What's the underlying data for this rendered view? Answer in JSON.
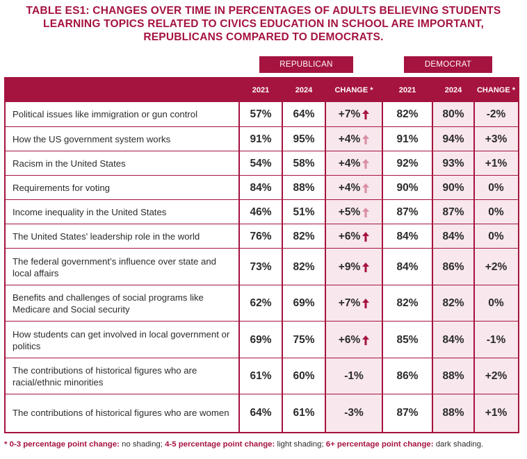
{
  "title": {
    "line1": "TABLE ES1: CHANGES OVER TIME IN PERCENTAGES OF ADULTS BELIEVING STUDENTS",
    "line2": "LEARNING TOPICS RELATED TO CIVICS EDUCATION IN SCHOOL ARE IMPORTANT,",
    "line3": "REPUBLICANS COMPARED TO DEMOCRATS."
  },
  "groups": {
    "republican": "REPUBLICAN",
    "democrat": "DEMOCRAT"
  },
  "columns": {
    "rep_2021": "2021",
    "rep_2024": "2024",
    "rep_change": "CHANGE *",
    "dem_2021": "2021",
    "dem_2024": "2024",
    "dem_change": "CHANGE *"
  },
  "colors": {
    "accent": "#a5133f",
    "light_arrow": "#d98ea4",
    "dark_arrow": "#a5133f",
    "shade": "#f8e7ec"
  },
  "rows": [
    {
      "topic": "Political issues like immigration or gun control",
      "r21": "57%",
      "r24": "64%",
      "rchg": "+7%",
      "rarrow": "dark",
      "d21": "82%",
      "d24": "80%",
      "dchg": "-2%"
    },
    {
      "topic": "How the US government system works",
      "r21": "91%",
      "r24": "95%",
      "rchg": "+4%",
      "rarrow": "light",
      "d21": "91%",
      "d24": "94%",
      "dchg": "+3%"
    },
    {
      "topic": "Racism in the United States",
      "r21": "54%",
      "r24": "58%",
      "rchg": "+4%",
      "rarrow": "light",
      "d21": "92%",
      "d24": "93%",
      "dchg": "+1%"
    },
    {
      "topic": "Requirements for voting",
      "r21": "84%",
      "r24": "88%",
      "rchg": "+4%",
      "rarrow": "light",
      "d21": "90%",
      "d24": "90%",
      "dchg": "0%"
    },
    {
      "topic": "Income inequality in the United States",
      "r21": "46%",
      "r24": "51%",
      "rchg": "+5%",
      "rarrow": "light",
      "d21": "87%",
      "d24": "87%",
      "dchg": "0%"
    },
    {
      "topic": "The United States’ leadership role in the world",
      "r21": "76%",
      "r24": "82%",
      "rchg": "+6%",
      "rarrow": "dark",
      "d21": "84%",
      "d24": "84%",
      "dchg": "0%"
    },
    {
      "topic": "The federal government’s influence over state and local affairs",
      "r21": "73%",
      "r24": "82%",
      "rchg": "+9%",
      "rarrow": "dark",
      "d21": "84%",
      "d24": "86%",
      "dchg": "+2%"
    },
    {
      "topic": "Benefits and challenges of social programs like Medicare and Social security",
      "r21": "62%",
      "r24": "69%",
      "rchg": "+7%",
      "rarrow": "dark",
      "d21": "82%",
      "d24": "82%",
      "dchg": "0%"
    },
    {
      "topic": "How students can get involved in local government or politics",
      "r21": "69%",
      "r24": "75%",
      "rchg": "+6%",
      "rarrow": "dark",
      "d21": "85%",
      "d24": "84%",
      "dchg": "-1%"
    },
    {
      "topic": "The contributions of historical figures who are racial/ethnic minorities",
      "r21": "61%",
      "r24": "60%",
      "rchg": "-1%",
      "rarrow": "none",
      "d21": "86%",
      "d24": "88%",
      "dchg": "+2%"
    },
    {
      "topic": "The contributions of historical figures who are women",
      "r21": "64%",
      "r24": "61%",
      "rchg": "-3%",
      "rarrow": "none",
      "d21": "87%",
      "d24": "88%",
      "dchg": "+1%"
    }
  ],
  "footnote": {
    "star": "* 0-3 percentage point change:",
    "t1": " no shading; ",
    "b2": "4-5 percentage point change:",
    "t2": " light shading; ",
    "b3": "6+ percentage point change:",
    "t3": " dark shading."
  }
}
